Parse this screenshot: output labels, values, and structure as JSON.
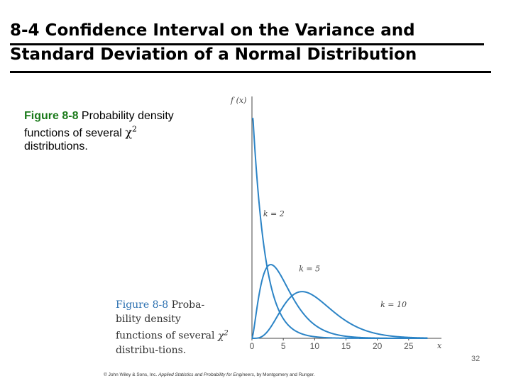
{
  "slide": {
    "title_line1": "8-4 Confidence Interval on the Variance and",
    "title_line2": "Standard Deviation of a Normal Distribution",
    "caption": {
      "figure_label": "Figure 8-8",
      "text_part1": "Probability density functions of several",
      "chi_symbol": "χ",
      "chi_exponent": "2",
      "text_part2": "distributions."
    },
    "book_caption": {
      "figure_label": "Figure 8-8",
      "text_part1": "Proba-bility density functions of several",
      "chi_symbol": "χ",
      "chi_exponent": "2",
      "text_part2": "distribu-tions."
    },
    "page_number": "32",
    "footer": {
      "prefix": "© John Wiley & Sons, Inc.",
      "book_title": "Applied Statistics and Probability for Engineers",
      "suffix": ", by Montgomery and Runger."
    }
  },
  "chart_data": {
    "type": "line",
    "title": "",
    "xlabel": "x",
    "ylabel": "f (x)",
    "xlim": [
      0,
      30
    ],
    "ylim": [
      0,
      0.5
    ],
    "x_ticks": [
      0,
      5,
      10,
      15,
      20,
      25
    ],
    "series": [
      {
        "name": "k = 2",
        "dof": 2,
        "label": "k = 2",
        "color": "#2c84c6"
      },
      {
        "name": "k = 5",
        "dof": 5,
        "label": "k = 5",
        "color": "#2c84c6"
      },
      {
        "name": "k = 10",
        "dof": 10,
        "label": "k = 10",
        "color": "#2c84c6"
      }
    ]
  }
}
